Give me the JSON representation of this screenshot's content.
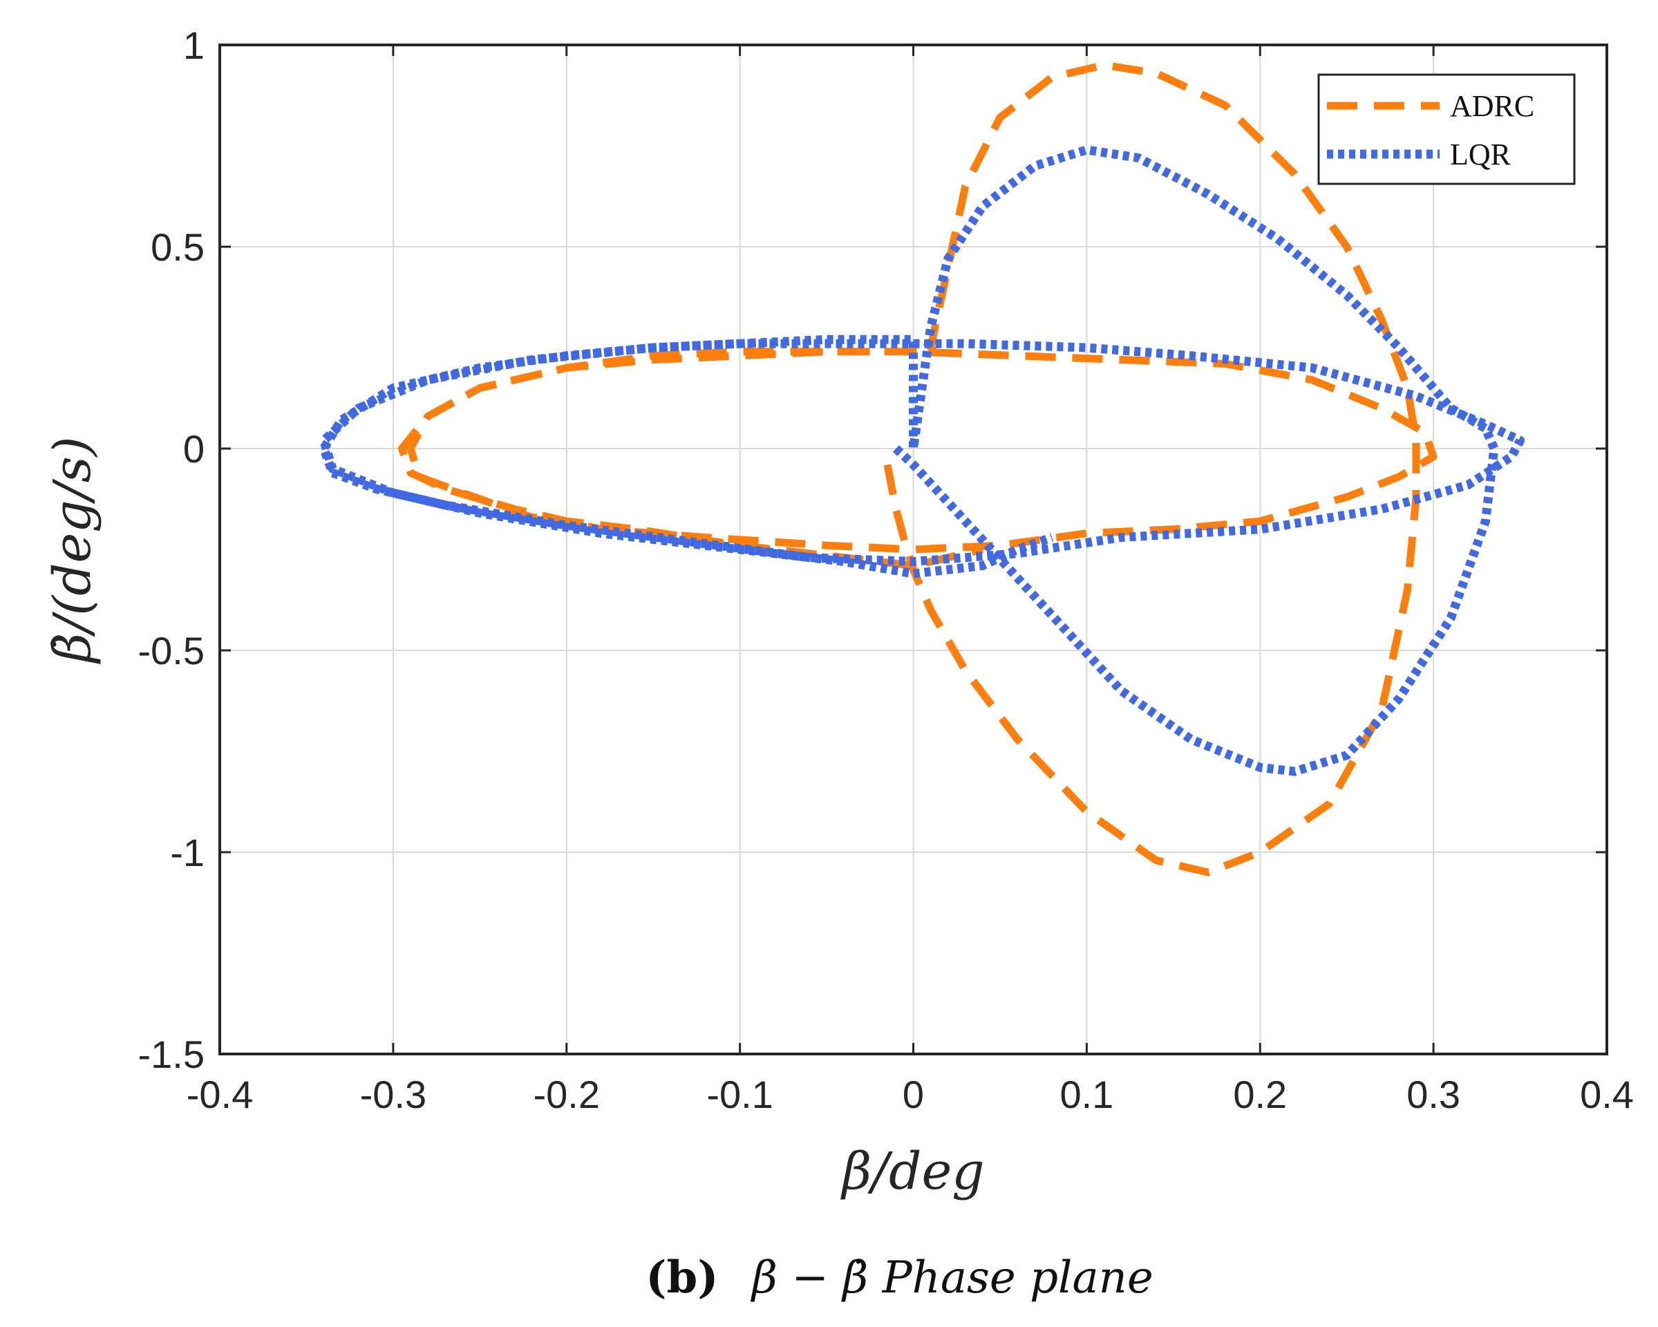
{
  "chart_data": {
    "type": "line",
    "caption": {
      "label": "(b)",
      "text": "β − β̇  Phase plane"
    },
    "xlabel": "β/deg",
    "ylabel": "β̇/(deg/s)",
    "xlim": [
      -0.4,
      0.4
    ],
    "ylim": [
      -1.5,
      1.0
    ],
    "x_ticks": [
      -0.4,
      -0.3,
      -0.2,
      -0.1,
      0,
      0.1,
      0.2,
      0.3,
      0.4
    ],
    "x_tick_labels": [
      "-0.4",
      "-0.3",
      "-0.2",
      "-0.1",
      "0",
      "0.1",
      "0.2",
      "0.3",
      "0.4"
    ],
    "y_ticks": [
      -1.5,
      -1.0,
      -0.5,
      0,
      0.5,
      1.0
    ],
    "y_tick_labels": [
      "-1.5",
      "-1",
      "-0.5",
      "0",
      "0.5",
      "1"
    ],
    "grid": true,
    "legend_position": "top-right",
    "series": [
      {
        "name": "ADRC",
        "color": "#FF7F0E",
        "style": "dashed",
        "points": [
          [
            -0.015,
            -0.04
          ],
          [
            -0.01,
            -0.15
          ],
          [
            -0.005,
            -0.23
          ],
          [
            0.0,
            -0.3
          ],
          [
            0.01,
            -0.4
          ],
          [
            0.03,
            -0.55
          ],
          [
            0.06,
            -0.72
          ],
          [
            0.1,
            -0.9
          ],
          [
            0.14,
            -1.02
          ],
          [
            0.17,
            -1.05
          ],
          [
            0.2,
            -1.0
          ],
          [
            0.24,
            -0.88
          ],
          [
            0.27,
            -0.65
          ],
          [
            0.285,
            -0.35
          ],
          [
            0.29,
            -0.12
          ],
          [
            0.29,
            0.02
          ],
          [
            0.285,
            0.15
          ],
          [
            0.27,
            0.32
          ],
          [
            0.25,
            0.5
          ],
          [
            0.22,
            0.68
          ],
          [
            0.18,
            0.85
          ],
          [
            0.14,
            0.93
          ],
          [
            0.11,
            0.95
          ],
          [
            0.08,
            0.92
          ],
          [
            0.05,
            0.82
          ],
          [
            0.03,
            0.65
          ],
          [
            0.02,
            0.45
          ],
          [
            0.01,
            0.25
          ],
          [
            0.012,
            0.24
          ],
          [
            -0.05,
            0.24
          ],
          [
            -0.1,
            0.23
          ],
          [
            -0.15,
            0.22
          ],
          [
            -0.2,
            0.2
          ],
          [
            -0.25,
            0.15
          ],
          [
            -0.28,
            0.08
          ],
          [
            -0.295,
            0.0
          ],
          [
            -0.29,
            -0.06
          ],
          [
            -0.27,
            -0.1
          ],
          [
            -0.23,
            -0.15
          ],
          [
            -0.18,
            -0.2
          ],
          [
            -0.12,
            -0.22
          ],
          [
            -0.05,
            -0.24
          ],
          [
            0.0,
            -0.25
          ],
          [
            0.05,
            -0.24
          ],
          [
            0.1,
            -0.21
          ],
          [
            0.15,
            -0.2
          ],
          [
            0.2,
            -0.18
          ],
          [
            0.25,
            -0.12
          ],
          [
            0.28,
            -0.07
          ],
          [
            0.3,
            -0.02
          ],
          [
            0.295,
            0.04
          ],
          [
            0.27,
            0.1
          ],
          [
            0.23,
            0.17
          ],
          [
            0.18,
            0.21
          ],
          [
            0.12,
            0.22
          ],
          [
            0.06,
            0.23
          ],
          [
            0.0,
            0.24
          ],
          [
            -0.05,
            0.24
          ],
          [
            -0.1,
            0.24
          ],
          [
            -0.15,
            0.23
          ],
          [
            -0.2,
            0.2
          ],
          [
            -0.25,
            0.15
          ],
          [
            -0.28,
            0.08
          ],
          [
            -0.29,
            0.0
          ],
          [
            -0.285,
            -0.07
          ],
          [
            -0.26,
            -0.11
          ],
          [
            -0.22,
            -0.17
          ],
          [
            -0.16,
            -0.2
          ],
          [
            -0.1,
            -0.24
          ],
          [
            -0.04,
            -0.27
          ],
          [
            0.0,
            -0.29
          ],
          [
            0.04,
            -0.25
          ]
        ]
      },
      {
        "name": "LQR",
        "color": "#4169E1",
        "style": "dotted",
        "points": [
          [
            -0.01,
            0.0
          ],
          [
            0.0,
            -0.04
          ],
          [
            0.03,
            -0.18
          ],
          [
            0.06,
            -0.32
          ],
          [
            0.09,
            -0.46
          ],
          [
            0.12,
            -0.6
          ],
          [
            0.16,
            -0.72
          ],
          [
            0.2,
            -0.79
          ],
          [
            0.22,
            -0.8
          ],
          [
            0.25,
            -0.76
          ],
          [
            0.28,
            -0.62
          ],
          [
            0.31,
            -0.42
          ],
          [
            0.33,
            -0.18
          ],
          [
            0.335,
            0.0
          ],
          [
            0.33,
            0.05
          ],
          [
            0.31,
            0.1
          ],
          [
            0.28,
            0.25
          ],
          [
            0.25,
            0.38
          ],
          [
            0.21,
            0.52
          ],
          [
            0.17,
            0.63
          ],
          [
            0.13,
            0.72
          ],
          [
            0.1,
            0.74
          ],
          [
            0.07,
            0.7
          ],
          [
            0.04,
            0.6
          ],
          [
            0.02,
            0.47
          ],
          [
            0.01,
            0.3
          ],
          [
            0.005,
            0.15
          ],
          [
            0.0,
            0.0
          ],
          [
            0.0,
            0.27
          ],
          [
            -0.05,
            0.27
          ],
          [
            -0.1,
            0.26
          ],
          [
            -0.15,
            0.25
          ],
          [
            -0.2,
            0.23
          ],
          [
            -0.25,
            0.2
          ],
          [
            -0.3,
            0.15
          ],
          [
            -0.33,
            0.07
          ],
          [
            -0.34,
            0.0
          ],
          [
            -0.335,
            -0.06
          ],
          [
            -0.31,
            -0.1
          ],
          [
            -0.27,
            -0.14
          ],
          [
            -0.2,
            -0.19
          ],
          [
            -0.13,
            -0.23
          ],
          [
            -0.06,
            -0.27
          ],
          [
            0.0,
            -0.28
          ],
          [
            0.06,
            -0.26
          ],
          [
            0.12,
            -0.22
          ],
          [
            0.2,
            -0.2
          ],
          [
            0.27,
            -0.15
          ],
          [
            0.32,
            -0.09
          ],
          [
            0.345,
            -0.02
          ],
          [
            0.35,
            0.02
          ],
          [
            0.33,
            0.06
          ],
          [
            0.29,
            0.13
          ],
          [
            0.23,
            0.2
          ],
          [
            0.16,
            0.23
          ],
          [
            0.1,
            0.25
          ],
          [
            0.03,
            0.26
          ],
          [
            -0.03,
            0.26
          ],
          [
            -0.1,
            0.26
          ],
          [
            -0.15,
            0.25
          ],
          [
            -0.22,
            0.22
          ],
          [
            -0.28,
            0.17
          ],
          [
            -0.32,
            0.1
          ],
          [
            -0.34,
            0.02
          ],
          [
            -0.335,
            -0.05
          ],
          [
            -0.3,
            -0.11
          ],
          [
            -0.25,
            -0.16
          ],
          [
            -0.18,
            -0.21
          ],
          [
            -0.1,
            -0.25
          ],
          [
            -0.04,
            -0.28
          ],
          [
            0.0,
            -0.31
          ],
          [
            0.04,
            -0.29
          ],
          [
            0.06,
            -0.25
          ],
          [
            0.08,
            -0.22
          ]
        ]
      }
    ]
  }
}
